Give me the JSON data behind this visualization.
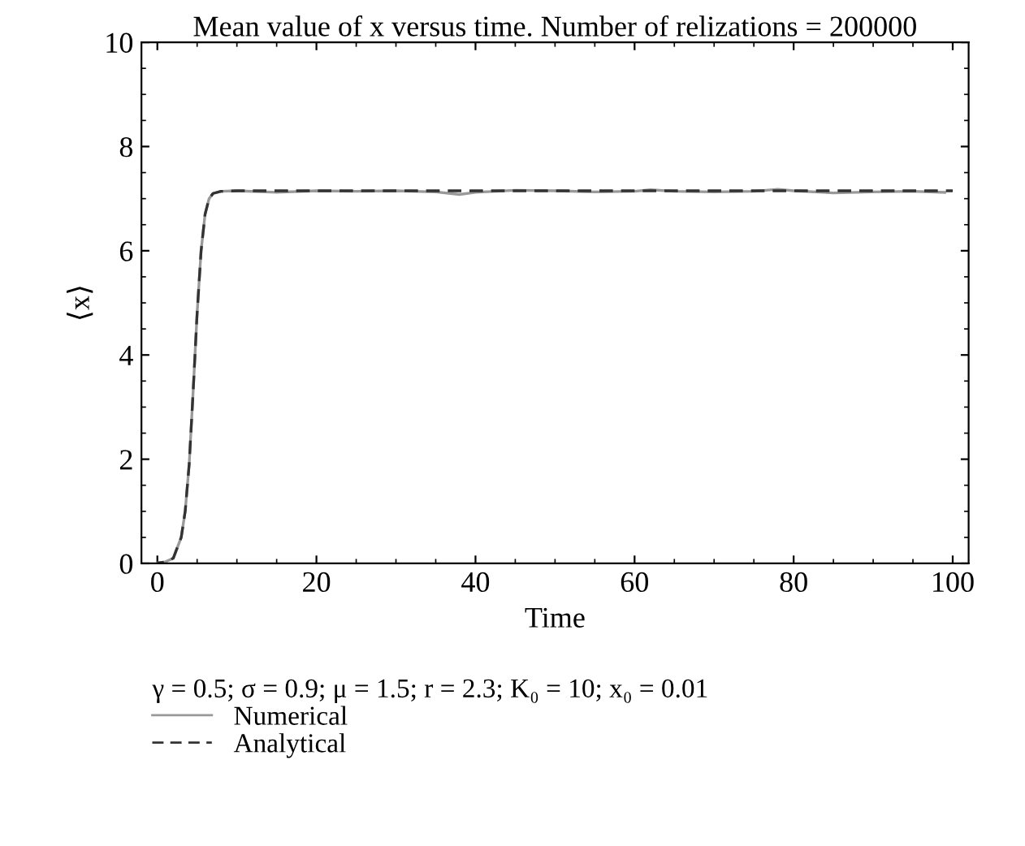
{
  "chart_data": {
    "type": "line",
    "title": "Mean value of x versus time. Number of relizations = 200000",
    "xlabel": "Time",
    "ylabel": "⟨x⟩",
    "legend_title": "γ = 0.5; σ = 0.9; μ = 1.5; r = 2.3; K₀ = 10; x₀ = 0.01",
    "xlim": [
      -2,
      102
    ],
    "ylim": [
      0,
      10
    ],
    "xticks": [
      0,
      20,
      40,
      60,
      80,
      100
    ],
    "yticks": [
      0,
      2,
      4,
      6,
      8,
      10
    ],
    "grid": false,
    "legend": "bottom left",
    "series": [
      {
        "name": "Numerical",
        "color": "#999999",
        "line_style": "solid",
        "x": [
          0,
          1,
          2,
          3,
          3.5,
          4,
          4.5,
          5,
          5.5,
          6,
          6.5,
          7,
          8,
          10,
          15,
          20,
          25,
          30,
          35,
          38,
          40,
          45,
          50,
          55,
          60,
          62,
          65,
          70,
          75,
          78,
          80,
          85,
          90,
          95,
          99
        ],
        "values": [
          0.01,
          0.03,
          0.1,
          0.5,
          1.0,
          1.9,
          3.3,
          4.8,
          6.0,
          6.7,
          7.0,
          7.1,
          7.14,
          7.15,
          7.12,
          7.15,
          7.14,
          7.15,
          7.13,
          7.08,
          7.12,
          7.16,
          7.15,
          7.13,
          7.14,
          7.17,
          7.14,
          7.13,
          7.14,
          7.18,
          7.15,
          7.11,
          7.13,
          7.14,
          7.12
        ]
      },
      {
        "name": "Analytical",
        "color": "#333333",
        "line_style": "dashed",
        "x": [
          0,
          1,
          2,
          3,
          3.5,
          4,
          4.5,
          5,
          5.5,
          6,
          6.5,
          7,
          8,
          10,
          100
        ],
        "values": [
          0.01,
          0.03,
          0.1,
          0.5,
          1.0,
          1.9,
          3.3,
          4.8,
          6.0,
          6.7,
          7.0,
          7.1,
          7.14,
          7.15,
          7.15
        ]
      }
    ]
  }
}
